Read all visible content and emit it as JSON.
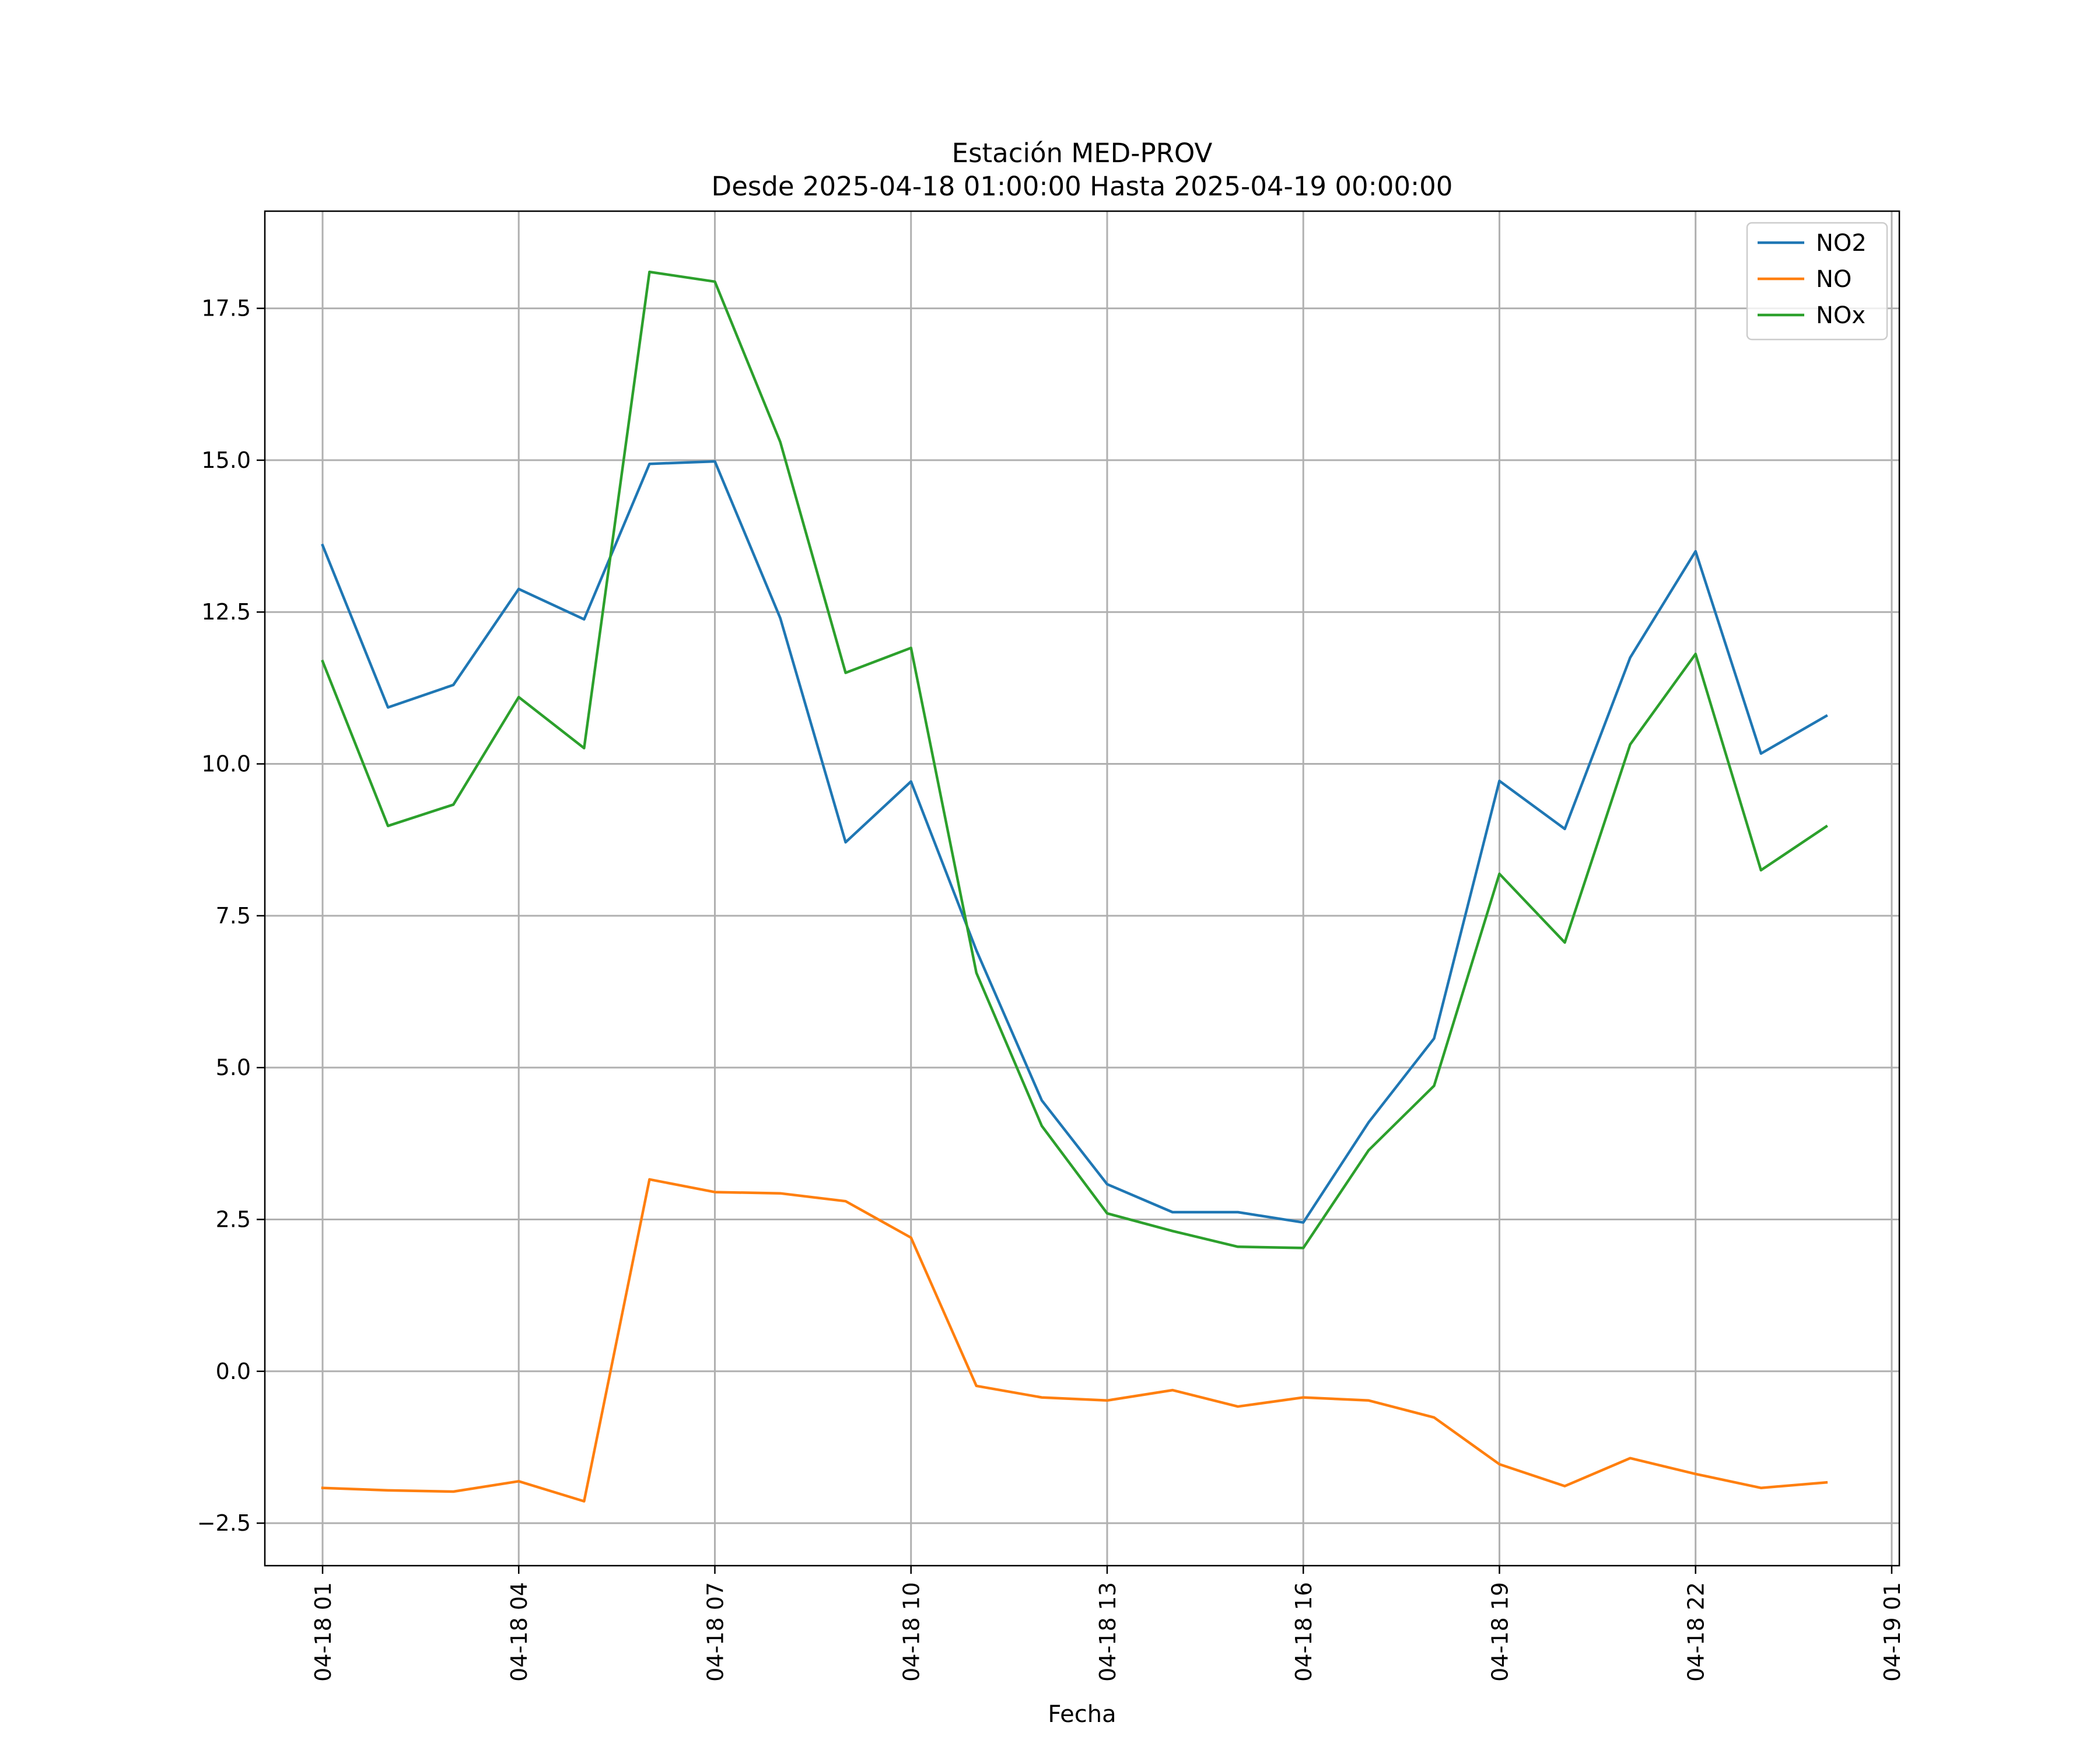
{
  "chart_data": {
    "type": "line",
    "title": "Estación MED-PROV",
    "subtitle": "Desde 2025-04-18 01:00:00 Hasta 2025-04-19 00:00:00",
    "xlabel": "Fecha",
    "ylabel": "",
    "x": [
      "2025-04-18 01:00",
      "2025-04-18 02:00",
      "2025-04-18 03:00",
      "2025-04-18 04:00",
      "2025-04-18 05:00",
      "2025-04-18 06:00",
      "2025-04-18 07:00",
      "2025-04-18 08:00",
      "2025-04-18 09:00",
      "2025-04-18 10:00",
      "2025-04-18 11:00",
      "2025-04-18 12:00",
      "2025-04-18 13:00",
      "2025-04-18 14:00",
      "2025-04-18 15:00",
      "2025-04-18 16:00",
      "2025-04-18 17:00",
      "2025-04-18 18:00",
      "2025-04-18 19:00",
      "2025-04-18 20:00",
      "2025-04-18 21:00",
      "2025-04-18 22:00",
      "2025-04-18 23:00",
      "2025-04-19 00:00"
    ],
    "series": [
      {
        "name": "NO2",
        "color": "#1f77b4",
        "values": [
          13.6,
          10.93,
          11.3,
          12.88,
          12.38,
          14.94,
          14.98,
          12.4,
          8.71,
          9.71,
          6.93,
          4.46,
          3.08,
          2.62,
          2.62,
          2.45,
          4.1,
          5.48,
          9.72,
          8.93,
          11.75,
          13.5,
          10.17,
          10.79
        ]
      },
      {
        "name": "NO",
        "color": "#ff7f0e",
        "values": [
          -1.92,
          -1.96,
          -1.98,
          -1.81,
          -2.14,
          3.16,
          2.95,
          2.93,
          2.8,
          2.2,
          -0.24,
          -0.43,
          -0.48,
          -0.31,
          -0.58,
          -0.43,
          -0.48,
          -0.76,
          -1.53,
          -1.89,
          -1.43,
          -1.69,
          -1.92,
          -1.83
        ]
      },
      {
        "name": "NOx",
        "color": "#2ca02c",
        "values": [
          11.69,
          8.98,
          9.33,
          11.1,
          10.26,
          18.1,
          17.94,
          15.3,
          11.5,
          11.91,
          6.56,
          4.04,
          2.6,
          2.31,
          2.05,
          2.03,
          3.64,
          4.7,
          8.19,
          7.06,
          10.32,
          11.81,
          8.25,
          8.97
        ]
      }
    ],
    "ylim": [
      -3.2,
      19.1
    ],
    "yticks": [
      -2.5,
      0.0,
      2.5,
      5.0,
      7.5,
      10.0,
      12.5,
      15.0,
      17.5
    ],
    "ytick_labels": [
      "−2.5",
      "0.0",
      "2.5",
      "5.0",
      "7.5",
      "10.0",
      "12.5",
      "15.0",
      "17.5"
    ],
    "xticks": [
      "2025-04-18 01:00",
      "2025-04-18 04:00",
      "2025-04-18 07:00",
      "2025-04-18 10:00",
      "2025-04-18 13:00",
      "2025-04-18 16:00",
      "2025-04-18 19:00",
      "2025-04-18 22:00",
      "2025-04-19 01:00"
    ],
    "xtick_labels": [
      "04-18 01",
      "04-18 04",
      "04-18 07",
      "04-18 10",
      "04-18 13",
      "04-18 16",
      "04-18 19",
      "04-18 22",
      "04-19 01"
    ],
    "xlim": [
      "2025-04-18 00:07",
      "2025-04-19 01:07"
    ],
    "grid": true,
    "legend_position": "top-right"
  }
}
